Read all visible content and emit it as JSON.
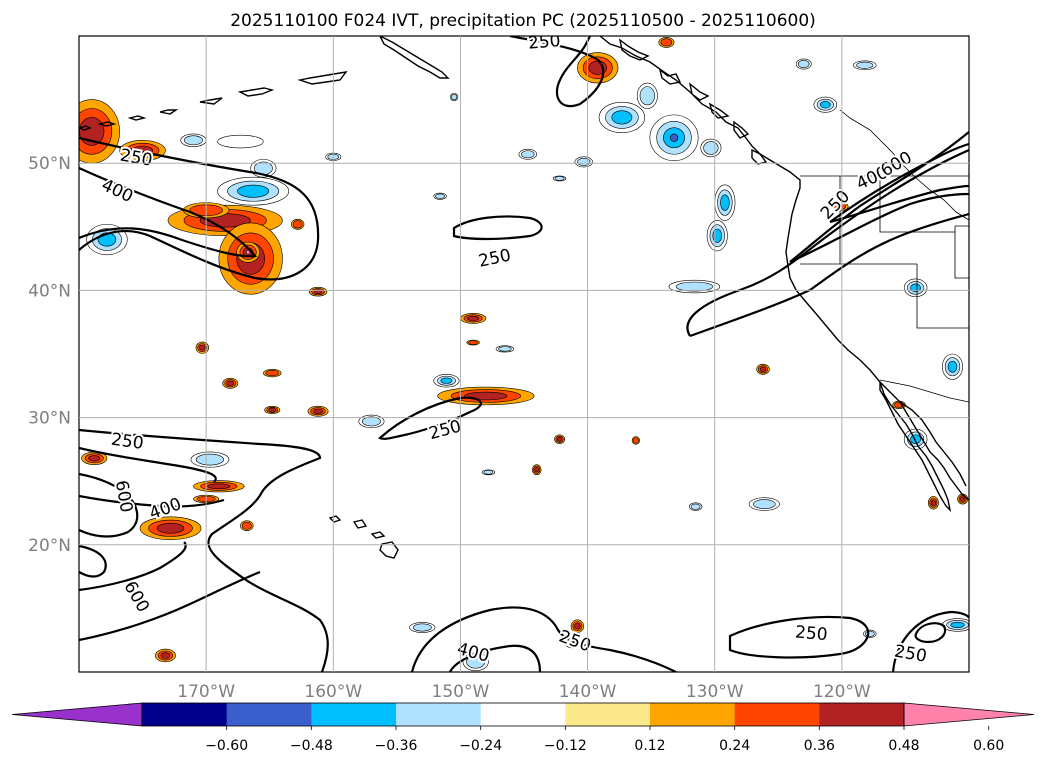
{
  "chart_data": {
    "type": "contour_map",
    "title": "2025110100 F024 IVT, precipitation PC (2025110500 - 2025110600)",
    "map_extent": {
      "lon": [
        -180,
        -110
      ],
      "lat": [
        10,
        60
      ]
    },
    "lat_ticks": [
      {
        "value": 50,
        "label": "50°N"
      },
      {
        "value": 40,
        "label": "40°N"
      },
      {
        "value": 30,
        "label": "30°N"
      },
      {
        "value": 20,
        "label": "20°N"
      }
    ],
    "lon_ticks": [
      {
        "value": -170,
        "label": "170°W"
      },
      {
        "value": -160,
        "label": "160°W"
      },
      {
        "value": -150,
        "label": "150°W"
      },
      {
        "value": -140,
        "label": "140°W"
      },
      {
        "value": -130,
        "label": "130°W"
      },
      {
        "value": -120,
        "label": "120°W"
      }
    ],
    "grid": true,
    "ivt_contour_levels": [
      250,
      400,
      600
    ],
    "ivt_contour_labels": [
      {
        "text": "250",
        "lon": -175.5,
        "lat": 50.4,
        "rot": 10
      },
      {
        "text": "400",
        "lon": -177,
        "lat": 47.8,
        "rot": 25
      },
      {
        "text": "250",
        "lon": -147.3,
        "lat": 42.5,
        "rot": -12
      },
      {
        "text": "250",
        "lon": -143.4,
        "lat": 59.5,
        "rot": -5
      },
      {
        "text": "400",
        "lon": -117.6,
        "lat": 48.8,
        "rot": -25
      },
      {
        "text": "600",
        "lon": -115.7,
        "lat": 49.9,
        "rot": -30
      },
      {
        "text": "250",
        "lon": -120.5,
        "lat": 46.7,
        "rot": -45
      },
      {
        "text": "250",
        "lon": -176.2,
        "lat": 28.1,
        "rot": 8
      },
      {
        "text": "250",
        "lon": -151.2,
        "lat": 29.0,
        "rot": -15
      },
      {
        "text": "600",
        "lon": -176.5,
        "lat": 23.8,
        "rot": 80
      },
      {
        "text": "400",
        "lon": -173.2,
        "lat": 22.8,
        "rot": -20
      },
      {
        "text": "600",
        "lon": -175.5,
        "lat": 15.9,
        "rot": 60
      },
      {
        "text": "400",
        "lon": -149.0,
        "lat": 11.5,
        "rot": 15
      },
      {
        "text": "250",
        "lon": -141.0,
        "lat": 12.4,
        "rot": 20
      },
      {
        "text": "250",
        "lon": -122.4,
        "lat": 13.0,
        "rot": 5
      },
      {
        "text": "250",
        "lon": -114.6,
        "lat": 11.4,
        "rot": 10
      }
    ],
    "colorbar": {
      "bounds": [
        -0.72,
        -0.6,
        -0.48,
        -0.36,
        -0.24,
        -0.12,
        0.12,
        0.24,
        0.36,
        0.48,
        0.6,
        0.72
      ],
      "tick_values": [
        -0.6,
        -0.48,
        -0.36,
        -0.24,
        -0.12,
        0.12,
        0.24,
        0.36,
        0.48,
        0.6
      ],
      "tick_labels": [
        "−0.60",
        "−0.48",
        "−0.36",
        "−0.24",
        "−0.12",
        "0.12",
        "0.24",
        "0.36",
        "0.48",
        "0.60"
      ],
      "colors": [
        "#9932cc",
        "#00008b",
        "#3a5fcd",
        "#00bfff",
        "#b0e2ff",
        "#ffffff",
        "#fce98b",
        "#ffa500",
        "#ff4500",
        "#b22222",
        "#ff82ab"
      ],
      "extend": "both"
    },
    "precip_pc_blobs": [
      {
        "lon": -179,
        "lat": 52.5,
        "rx": 2.2,
        "ry": 2.5,
        "value": 0.4
      },
      {
        "lon": -175,
        "lat": 51.0,
        "rx": 1.8,
        "ry": 0.8,
        "value": 0.36
      },
      {
        "lon": -168.5,
        "lat": 45.5,
        "rx": 4.5,
        "ry": 1.2,
        "value": 0.42
      },
      {
        "lon": -166.5,
        "lat": 42.5,
        "rx": 2.5,
        "ry": 2.8,
        "value": 0.4
      },
      {
        "lon": -166.7,
        "lat": 43.0,
        "rx": 0.9,
        "ry": 0.8,
        "value": 0.62
      },
      {
        "lon": -170,
        "lat": 46.3,
        "rx": 1.8,
        "ry": 0.6,
        "value": 0.28
      },
      {
        "lon": -177.8,
        "lat": 44.0,
        "rx": 1.6,
        "ry": 1.2,
        "value": -0.38
      },
      {
        "lon": -166.3,
        "lat": 47.8,
        "rx": 2.8,
        "ry": 1.1,
        "value": -0.4
      },
      {
        "lon": -165.5,
        "lat": 49.6,
        "rx": 1.0,
        "ry": 0.7,
        "value": -0.3
      },
      {
        "lon": -171,
        "lat": 51.8,
        "rx": 1.0,
        "ry": 0.5,
        "value": -0.3
      },
      {
        "lon": -167.3,
        "lat": 51.7,
        "rx": 1.8,
        "ry": 0.5,
        "value": -0.2
      },
      {
        "lon": -162.8,
        "lat": 45.2,
        "rx": 0.5,
        "ry": 0.4,
        "value": 0.3
      },
      {
        "lon": -161.2,
        "lat": 39.9,
        "rx": 0.7,
        "ry": 0.35,
        "value": 0.4
      },
      {
        "lon": -170.3,
        "lat": 35.5,
        "rx": 0.5,
        "ry": 0.45,
        "value": 0.4
      },
      {
        "lon": -168.1,
        "lat": 32.7,
        "rx": 0.6,
        "ry": 0.4,
        "value": 0.36
      },
      {
        "lon": -164.8,
        "lat": 33.5,
        "rx": 0.7,
        "ry": 0.3,
        "value": 0.35
      },
      {
        "lon": -161.2,
        "lat": 30.5,
        "rx": 0.8,
        "ry": 0.4,
        "value": 0.38
      },
      {
        "lon": -164.8,
        "lat": 30.6,
        "rx": 0.6,
        "ry": 0.3,
        "value": 0.36
      },
      {
        "lon": -157,
        "lat": 29.7,
        "rx": 1.0,
        "ry": 0.5,
        "value": -0.35
      },
      {
        "lon": -178.8,
        "lat": 26.8,
        "rx": 1.0,
        "ry": 0.5,
        "value": 0.4
      },
      {
        "lon": -169.7,
        "lat": 26.7,
        "rx": 1.5,
        "ry": 0.6,
        "value": -0.35
      },
      {
        "lon": -169.0,
        "lat": 24.6,
        "rx": 2.0,
        "ry": 0.45,
        "value": 0.36
      },
      {
        "lon": -170,
        "lat": 23.6,
        "rx": 1.0,
        "ry": 0.3,
        "value": 0.32
      },
      {
        "lon": -172.8,
        "lat": 21.3,
        "rx": 2.4,
        "ry": 0.9,
        "value": 0.42
      },
      {
        "lon": -166.8,
        "lat": 21.5,
        "rx": 0.5,
        "ry": 0.4,
        "value": 0.35
      },
      {
        "lon": -173.2,
        "lat": 11.3,
        "rx": 0.8,
        "ry": 0.5,
        "value": 0.4
      },
      {
        "lon": -149,
        "lat": 37.8,
        "rx": 1.0,
        "ry": 0.4,
        "value": 0.38
      },
      {
        "lon": -149,
        "lat": 35.9,
        "rx": 0.5,
        "ry": 0.2,
        "value": 0.35
      },
      {
        "lon": -148,
        "lat": 31.7,
        "rx": 3.8,
        "ry": 0.7,
        "value": 0.4
      },
      {
        "lon": -151.1,
        "lat": 32.9,
        "rx": 1.0,
        "ry": 0.5,
        "value": -0.38
      },
      {
        "lon": -146.5,
        "lat": 35.4,
        "rx": 0.7,
        "ry": 0.25,
        "value": -0.3
      },
      {
        "lon": -153,
        "lat": 13.5,
        "rx": 1.0,
        "ry": 0.4,
        "value": -0.3
      },
      {
        "lon": -148.8,
        "lat": 10.8,
        "rx": 1.0,
        "ry": 0.7,
        "value": -0.35
      },
      {
        "lon": -147.8,
        "lat": 25.7,
        "rx": 0.5,
        "ry": 0.2,
        "value": -0.3
      },
      {
        "lon": -144,
        "lat": 25.9,
        "rx": 0.35,
        "ry": 0.4,
        "value": 0.4
      },
      {
        "lon": -142.2,
        "lat": 28.3,
        "rx": 0.4,
        "ry": 0.35,
        "value": 0.38
      },
      {
        "lon": -140.8,
        "lat": 13.6,
        "rx": 0.5,
        "ry": 0.5,
        "value": 0.38
      },
      {
        "lon": -141.2,
        "lat": 12.3,
        "rx": 0.6,
        "ry": 0.4,
        "value": 0.4
      },
      {
        "lon": -136.2,
        "lat": 28.2,
        "rx": 0.3,
        "ry": 0.3,
        "value": 0.35
      },
      {
        "lon": -139.2,
        "lat": 57.5,
        "rx": 1.6,
        "ry": 1.2,
        "value": 0.38
      },
      {
        "lon": -137.3,
        "lat": 53.6,
        "rx": 1.8,
        "ry": 1.2,
        "value": -0.4
      },
      {
        "lon": -133.2,
        "lat": 52.0,
        "rx": 1.9,
        "ry": 1.8,
        "value": -0.5
      },
      {
        "lon": -135.3,
        "lat": 55.3,
        "rx": 0.8,
        "ry": 1.0,
        "value": -0.35
      },
      {
        "lon": -130.3,
        "lat": 51.2,
        "rx": 0.8,
        "ry": 0.7,
        "value": -0.35
      },
      {
        "lon": -129.2,
        "lat": 46.9,
        "rx": 0.8,
        "ry": 1.4,
        "value": -0.4
      },
      {
        "lon": -129.8,
        "lat": 44.3,
        "rx": 0.8,
        "ry": 1.2,
        "value": -0.38
      },
      {
        "lon": -131.6,
        "lat": 40.3,
        "rx": 2.0,
        "ry": 0.5,
        "value": -0.3
      },
      {
        "lon": -121.3,
        "lat": 54.6,
        "rx": 0.9,
        "ry": 0.6,
        "value": -0.38
      },
      {
        "lon": -123.0,
        "lat": 57.8,
        "rx": 0.6,
        "ry": 0.4,
        "value": -0.3
      },
      {
        "lon": -118.2,
        "lat": 57.7,
        "rx": 0.9,
        "ry": 0.35,
        "value": -0.3
      },
      {
        "lon": -126.2,
        "lat": 33.8,
        "rx": 0.5,
        "ry": 0.4,
        "value": 0.4
      },
      {
        "lon": -120.2,
        "lat": 46.6,
        "rx": 0.7,
        "ry": 0.35,
        "value": 0.33
      },
      {
        "lon": -114.2,
        "lat": 40.2,
        "rx": 0.9,
        "ry": 0.7,
        "value": -0.38
      },
      {
        "lon": -111.3,
        "lat": 34.0,
        "rx": 0.8,
        "ry": 1.0,
        "value": -0.4
      },
      {
        "lon": -114.2,
        "lat": 28.3,
        "rx": 0.9,
        "ry": 0.8,
        "value": -0.38
      },
      {
        "lon": -115.5,
        "lat": 31.0,
        "rx": 0.5,
        "ry": 0.3,
        "value": 0.35
      },
      {
        "lon": -112.8,
        "lat": 23.3,
        "rx": 0.4,
        "ry": 0.5,
        "value": 0.38
      },
      {
        "lon": -110.5,
        "lat": 23.6,
        "rx": 0.4,
        "ry": 0.4,
        "value": 0.4
      },
      {
        "lon": -126.1,
        "lat": 23.2,
        "rx": 1.2,
        "ry": 0.5,
        "value": -0.35
      },
      {
        "lon": -131.5,
        "lat": 23.0,
        "rx": 0.5,
        "ry": 0.3,
        "value": -0.3
      },
      {
        "lon": -110.9,
        "lat": 13.7,
        "rx": 1.2,
        "ry": 0.5,
        "value": -0.4
      },
      {
        "lon": -160,
        "lat": 50.5,
        "rx": 0.6,
        "ry": 0.3,
        "value": -0.3
      },
      {
        "lon": -151.6,
        "lat": 47.4,
        "rx": 0.5,
        "ry": 0.25,
        "value": -0.3
      },
      {
        "lon": -144.7,
        "lat": 50.7,
        "rx": 0.7,
        "ry": 0.4,
        "value": -0.3
      },
      {
        "lon": -140.3,
        "lat": 50.1,
        "rx": 0.7,
        "ry": 0.4,
        "value": -0.3
      },
      {
        "lon": -142.2,
        "lat": 48.8,
        "rx": 0.5,
        "ry": 0.2,
        "value": -0.3
      },
      {
        "lon": -150.5,
        "lat": 55.2,
        "rx": 0.3,
        "ry": 0.3,
        "value": -0.3
      },
      {
        "lon": -133.8,
        "lat": 59.5,
        "rx": 0.6,
        "ry": 0.4,
        "value": 0.35
      },
      {
        "lon": -117.8,
        "lat": 13.0,
        "rx": 0.5,
        "ry": 0.3,
        "value": -0.3
      }
    ]
  }
}
